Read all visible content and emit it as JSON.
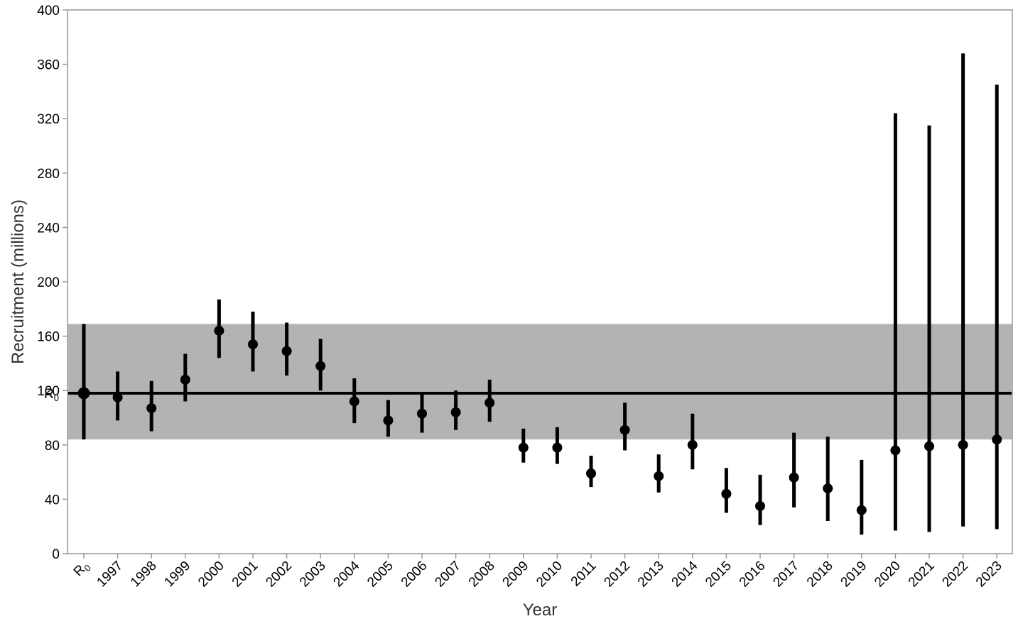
{
  "chart_data": {
    "type": "scatter",
    "xlabel": "Year",
    "ylabel": "Recruitment (millions)",
    "ylim": [
      0,
      400
    ],
    "yticks": [
      0,
      40,
      80,
      120,
      160,
      200,
      240,
      280,
      320,
      360,
      400
    ],
    "grid": false,
    "reference_line": {
      "label": "R0",
      "value": 118
    },
    "reference_band": {
      "low": 84,
      "high": 169,
      "color": "#b3b3b3"
    },
    "categories": [
      "R0",
      "1997",
      "1998",
      "1999",
      "2000",
      "2001",
      "2002",
      "2003",
      "2004",
      "2005",
      "2006",
      "2007",
      "2008",
      "2009",
      "2010",
      "2011",
      "2012",
      "2013",
      "2014",
      "2015",
      "2016",
      "2017",
      "2018",
      "2019",
      "2020",
      "2021",
      "2022",
      "2023"
    ],
    "values": [
      118,
      115,
      107,
      128,
      164,
      154,
      149,
      138,
      112,
      98,
      103,
      104,
      111,
      78,
      78,
      59,
      91,
      57,
      80,
      44,
      35,
      56,
      48,
      32,
      76,
      79,
      80,
      84
    ],
    "lower": [
      84,
      98,
      90,
      112,
      144,
      134,
      131,
      120,
      96,
      86,
      89,
      91,
      97,
      67,
      66,
      49,
      76,
      45,
      62,
      30,
      21,
      34,
      24,
      14,
      17,
      16,
      20,
      18
    ],
    "upper": [
      169,
      134,
      127,
      147,
      187,
      178,
      170,
      158,
      129,
      113,
      119,
      120,
      128,
      92,
      93,
      72,
      111,
      73,
      103,
      63,
      58,
      89,
      86,
      69,
      324,
      315,
      368,
      345
    ],
    "colors": {
      "marks": "#000000",
      "band": "#b3b3b3",
      "frame": "#b0b0b0"
    }
  }
}
